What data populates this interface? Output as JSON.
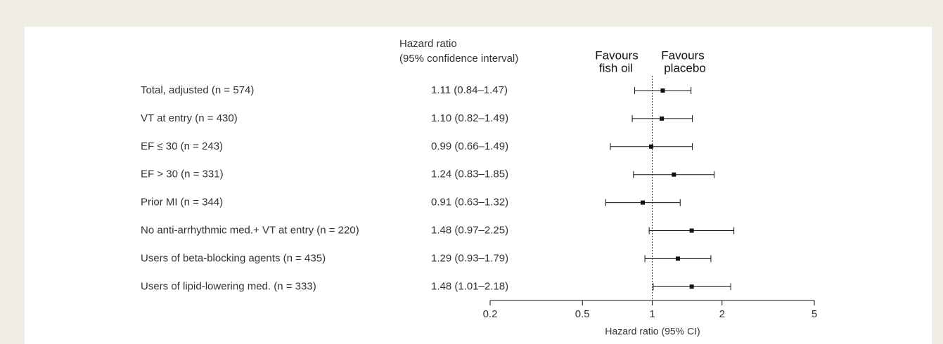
{
  "chart_data": {
    "type": "forest",
    "column_header": [
      "Hazard ratio",
      "(95% confidence interval)"
    ],
    "left_annotation": [
      "Favours",
      "fish oil"
    ],
    "right_annotation": [
      "Favours",
      "placebo"
    ],
    "categories": [
      "Total, adjusted (n = 574)",
      "VT at entry (n = 430)",
      "EF ≤ 30 (n = 243)",
      "EF > 30 (n = 331)",
      "Prior MI (n = 344)",
      "No anti-arrhythmic med.+ VT at entry (n = 220)",
      "Users of beta-blocking agents (n = 435)",
      "Users of lipid-lowering med. (n = 333)"
    ],
    "values": [
      1.11,
      1.1,
      0.99,
      1.24,
      0.91,
      1.48,
      1.29,
      1.48
    ],
    "lower": [
      0.84,
      0.82,
      0.66,
      0.83,
      0.63,
      0.97,
      0.93,
      1.01
    ],
    "upper": [
      1.47,
      1.49,
      1.49,
      1.85,
      1.32,
      2.25,
      1.79,
      2.18
    ],
    "value_labels": [
      "1.11 (0.84–1.47)",
      "1.10 (0.82–1.49)",
      "0.99 (0.66–1.49)",
      "1.24 (0.83–1.85)",
      "0.91 (0.63–1.32)",
      "1.48 (0.97–2.25)",
      "1.29 (0.93–1.79)",
      "1.48 (1.01–2.18)"
    ],
    "reference_line": 1,
    "xlabel": "Hazard ratio (95% CI)",
    "xscale": "log",
    "xlim": [
      0.2,
      5
    ],
    "xticks": [
      0.2,
      0.5,
      1,
      2,
      5
    ],
    "color": "#111111"
  }
}
